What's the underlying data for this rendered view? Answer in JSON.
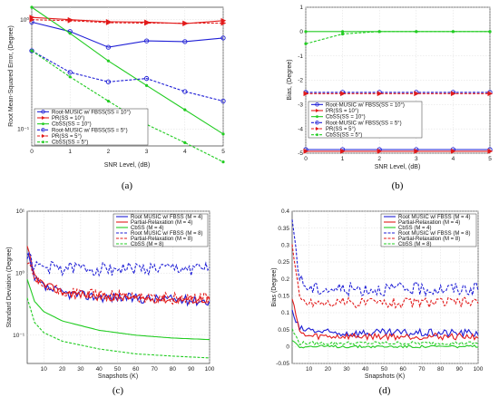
{
  "colors": {
    "blue": "#1f1fd6",
    "red": "#e21b1b",
    "green": "#22cc22"
  },
  "chart_data": [
    {
      "id": "a",
      "type": "line",
      "caption": "(a)",
      "log_y": true,
      "xlabel": "SNR Level, (dB)",
      "ylabel": "Root Mean-Squared Error, (Degree)",
      "xlim": [
        0,
        5
      ],
      "ylim": [
        0.07,
        1.3
      ],
      "xticks": [
        "0",
        "1",
        "2",
        "3",
        "4",
        "5"
      ],
      "yticks": [
        {
          "v": 0.1,
          "t": "10⁻¹"
        },
        {
          "v": 1,
          "t": "10⁰"
        }
      ],
      "legend_pos": "lower-left",
      "series": [
        {
          "name": "Root-MUSIC  w/ FBSS(SS = 10°)",
          "color": "blue",
          "dash": false,
          "marker": "circle",
          "x": [
            0,
            1,
            2,
            3,
            4,
            5
          ],
          "y": [
            0.95,
            0.78,
            0.56,
            0.64,
            0.63,
            0.68
          ]
        },
        {
          "name": "PR(SS = 10°)",
          "color": "red",
          "dash": false,
          "marker": "tri",
          "x": [
            0,
            1,
            2,
            3,
            4,
            5
          ],
          "y": [
            1.05,
            1.0,
            0.96,
            0.95,
            0.92,
            0.98
          ]
        },
        {
          "name": "CbSS(SS = 10°)",
          "color": "green",
          "dash": false,
          "marker": "dot",
          "x": [
            0,
            1,
            2,
            3,
            4,
            5
          ],
          "y": [
            1.3,
            0.75,
            0.42,
            0.25,
            0.15,
            0.09
          ]
        },
        {
          "name": "Root-MUSIC  w/ FBSS(SS = 5°)",
          "color": "blue",
          "dash": true,
          "marker": "circle",
          "x": [
            0,
            1,
            2,
            3,
            4,
            5
          ],
          "y": [
            0.52,
            0.33,
            0.27,
            0.29,
            0.22,
            0.18
          ]
        },
        {
          "name": "PR(SS = 5°)",
          "color": "red",
          "dash": true,
          "marker": "tri",
          "x": [
            0,
            1,
            2,
            3,
            4,
            5
          ],
          "y": [
            1.0,
            0.98,
            0.94,
            0.93,
            0.93,
            0.93
          ]
        },
        {
          "name": "CbSS(SS = 5°)",
          "color": "green",
          "dash": true,
          "marker": "dot",
          "x": [
            0,
            1,
            2,
            3,
            4,
            5
          ],
          "y": [
            0.52,
            0.3,
            0.18,
            0.11,
            0.075,
            0.05
          ]
        }
      ]
    },
    {
      "id": "b",
      "type": "line",
      "caption": "(b)",
      "log_y": false,
      "xlabel": "SNR Level, (dB)",
      "ylabel": "Bias, (Degree)",
      "xlim": [
        0,
        5
      ],
      "ylim": [
        -5,
        1
      ],
      "xticks": [
        "0",
        "1",
        "2",
        "3",
        "4",
        "5"
      ],
      "yticks": [
        {
          "v": 1,
          "t": "1"
        },
        {
          "v": 0,
          "t": "0"
        },
        {
          "v": -1,
          "t": "-1"
        },
        {
          "v": -2,
          "t": "-2"
        },
        {
          "v": -3,
          "t": "-3"
        },
        {
          "v": -4,
          "t": "-4"
        },
        {
          "v": -5,
          "t": "-5"
        }
      ],
      "legend_pos": "middle-left",
      "series": [
        {
          "name": "Root-MUSIC  w/ FBSS(SS = 10°)",
          "color": "blue",
          "dash": false,
          "marker": "circle",
          "x": [
            0,
            1,
            2,
            3,
            4,
            5
          ],
          "y": [
            -4.85,
            -4.85,
            -4.85,
            -4.85,
            -4.85,
            -4.85
          ]
        },
        {
          "name": "PR(SS = 10°)",
          "color": "red",
          "dash": false,
          "marker": "tri",
          "x": [
            0,
            1,
            2,
            3,
            4,
            5
          ],
          "y": [
            -4.92,
            -4.92,
            -4.92,
            -4.92,
            -4.92,
            -4.92
          ]
        },
        {
          "name": "CbSS(SS = 10°)",
          "color": "green",
          "dash": false,
          "marker": "dot",
          "x": [
            0,
            1,
            2,
            3,
            4,
            5
          ],
          "y": [
            0,
            0,
            0,
            0,
            0,
            0
          ]
        },
        {
          "name": "Root-MUSIC  w/ FBSS(SS = 5°)",
          "color": "blue",
          "dash": true,
          "marker": "circle",
          "x": [
            0,
            1,
            2,
            3,
            4,
            5
          ],
          "y": [
            -2.5,
            -2.5,
            -2.5,
            -2.5,
            -2.5,
            -2.5
          ]
        },
        {
          "name": "PR(SS = 5°)",
          "color": "red",
          "dash": true,
          "marker": "tri",
          "x": [
            0,
            1,
            2,
            3,
            4,
            5
          ],
          "y": [
            -2.55,
            -2.55,
            -2.55,
            -2.55,
            -2.55,
            -2.55
          ]
        },
        {
          "name": "CbSS(SS = 5°)",
          "color": "green",
          "dash": true,
          "marker": "dot",
          "x": [
            0,
            1,
            2,
            3,
            4,
            5
          ],
          "y": [
            -0.5,
            -0.1,
            0,
            0,
            0,
            0
          ]
        }
      ]
    },
    {
      "id": "c",
      "type": "line",
      "caption": "(c)",
      "log_y": true,
      "xlabel": "Snapshots (K)",
      "ylabel": "Standard Deviation (Degree)",
      "xlim": [
        1,
        100
      ],
      "ylim": [
        0.035,
        10
      ],
      "xticks": [
        "10",
        "20",
        "30",
        "40",
        "50",
        "60",
        "70",
        "80",
        "90",
        "100"
      ],
      "yticks": [
        {
          "v": 0.1,
          "t": "10⁻¹"
        },
        {
          "v": 1,
          "t": "10⁰"
        },
        {
          "v": 10,
          "t": "10¹"
        }
      ],
      "legend_pos": "top-right",
      "noisy": true,
      "series": [
        {
          "name": "Root MUSIC w/ FBSS (M = 4)",
          "color": "blue",
          "dash": false,
          "x": [
            1,
            5,
            10,
            20,
            40,
            60,
            80,
            100
          ],
          "y": [
            2.0,
            0.8,
            0.6,
            0.48,
            0.42,
            0.4,
            0.38,
            0.36
          ],
          "noise": 0.06
        },
        {
          "name": "Partial-Relaxation (M = 4)",
          "color": "red",
          "dash": false,
          "x": [
            1,
            5,
            10,
            20,
            40,
            60,
            80,
            100
          ],
          "y": [
            2.5,
            0.9,
            0.65,
            0.5,
            0.42,
            0.4,
            0.38,
            0.38
          ],
          "noise": 0.05
        },
        {
          "name": "CbSS (M = 4)",
          "color": "green",
          "dash": false,
          "x": [
            1,
            5,
            10,
            20,
            40,
            60,
            80,
            100
          ],
          "y": [
            0.8,
            0.35,
            0.24,
            0.17,
            0.12,
            0.1,
            0.09,
            0.085
          ],
          "noise": 0.0
        },
        {
          "name": "Root MUSIC w/ FBSS (M = 8)",
          "color": "blue",
          "dash": true,
          "x": [
            1,
            5,
            10,
            20,
            40,
            60,
            80,
            100
          ],
          "y": [
            2.0,
            1.3,
            1.25,
            1.22,
            1.2,
            1.2,
            1.2,
            1.2
          ],
          "noise": 0.08
        },
        {
          "name": "Partial-Relaxation (M = 8)",
          "color": "red",
          "dash": true,
          "x": [
            1,
            5,
            10,
            20,
            40,
            60,
            80,
            100
          ],
          "y": [
            1.5,
            0.75,
            0.6,
            0.5,
            0.45,
            0.42,
            0.4,
            0.4
          ],
          "noise": 0.07
        },
        {
          "name": "CbSS (M = 8)",
          "color": "green",
          "dash": true,
          "x": [
            1,
            5,
            10,
            20,
            40,
            60,
            80,
            100
          ],
          "y": [
            0.4,
            0.16,
            0.11,
            0.08,
            0.06,
            0.05,
            0.046,
            0.043
          ],
          "noise": 0.0
        }
      ]
    },
    {
      "id": "d",
      "type": "line",
      "caption": "(d)",
      "log_y": false,
      "xlabel": "Snapshots (K)",
      "ylabel": "Bias (Degree)",
      "xlim": [
        1,
        100
      ],
      "ylim": [
        -0.05,
        0.4
      ],
      "xticks": [
        "10",
        "20",
        "30",
        "40",
        "50",
        "60",
        "70",
        "80",
        "90",
        "100"
      ],
      "yticks": [
        {
          "v": 0.4,
          "t": "0.4"
        },
        {
          "v": 0.35,
          "t": "0.35"
        },
        {
          "v": 0.3,
          "t": "0.3"
        },
        {
          "v": 0.25,
          "t": "0.25"
        },
        {
          "v": 0.2,
          "t": "0.2"
        },
        {
          "v": 0.15,
          "t": "0.15"
        },
        {
          "v": 0.1,
          "t": "0.1"
        },
        {
          "v": 0.05,
          "t": "0.05"
        },
        {
          "v": 0,
          "t": "0"
        },
        {
          "v": -0.05,
          "t": "-0.05"
        }
      ],
      "legend_pos": "top-right",
      "noisy": true,
      "series": [
        {
          "name": "Root MUSIC w/ FBSS (M = 4)",
          "color": "blue",
          "dash": false,
          "x": [
            1,
            5,
            10,
            20,
            40,
            60,
            80,
            100
          ],
          "y": [
            0.1,
            0.05,
            0.05,
            0.04,
            0.04,
            0.04,
            0.04,
            0.04
          ],
          "noise": 0.012
        },
        {
          "name": "Partial-Relaxation (M = 4)",
          "color": "red",
          "dash": false,
          "x": [
            1,
            5,
            10,
            20,
            40,
            60,
            80,
            100
          ],
          "y": [
            0.15,
            0.04,
            0.03,
            0.03,
            0.03,
            0.03,
            0.03,
            0.03
          ],
          "noise": 0.01
        },
        {
          "name": "CbSS (M = 4)",
          "color": "green",
          "dash": false,
          "x": [
            1,
            5,
            10,
            20,
            40,
            60,
            80,
            100
          ],
          "y": [
            0.02,
            0.0,
            0.0,
            0.0,
            0.0,
            0.0,
            0.0,
            0.0
          ],
          "noise": 0.004
        },
        {
          "name": "Root MUSIC w/ FBSS (M = 8)",
          "color": "blue",
          "dash": true,
          "x": [
            1,
            5,
            10,
            20,
            40,
            60,
            80,
            100
          ],
          "y": [
            0.38,
            0.2,
            0.17,
            0.17,
            0.17,
            0.17,
            0.17,
            0.17
          ],
          "noise": 0.02
        },
        {
          "name": "Partial-Relaxation (M = 8)",
          "color": "red",
          "dash": true,
          "x": [
            1,
            5,
            10,
            20,
            40,
            60,
            80,
            100
          ],
          "y": [
            0.3,
            0.14,
            0.13,
            0.13,
            0.13,
            0.13,
            0.13,
            0.13
          ],
          "noise": 0.015
        },
        {
          "name": "CbSS (M = 8)",
          "color": "green",
          "dash": true,
          "x": [
            1,
            5,
            10,
            20,
            40,
            60,
            80,
            100
          ],
          "y": [
            0.05,
            0.01,
            0.01,
            0.01,
            0.01,
            0.01,
            0.01,
            0.01
          ],
          "noise": 0.005
        }
      ]
    }
  ]
}
